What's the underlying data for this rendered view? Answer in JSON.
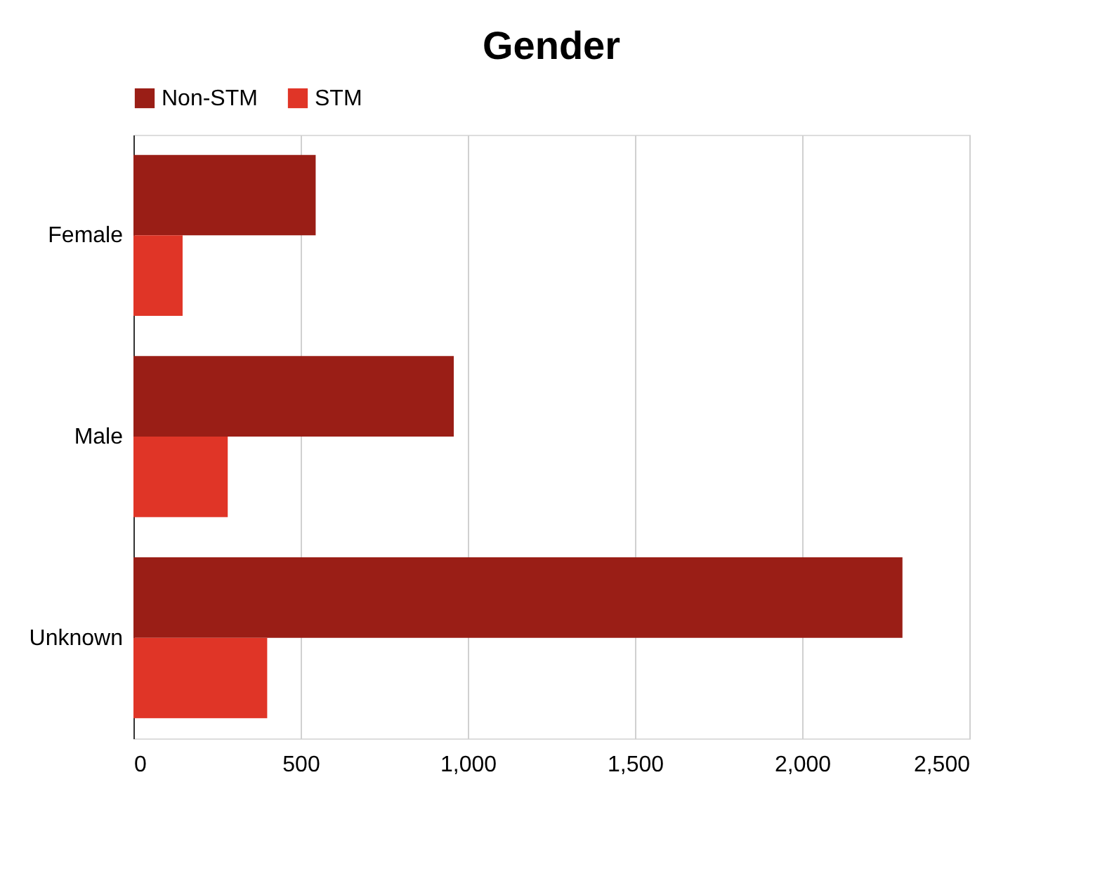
{
  "chart_data": {
    "type": "bar",
    "orientation": "horizontal",
    "title": "Gender",
    "categories": [
      "Female",
      "Male",
      "Unknown"
    ],
    "series": [
      {
        "name": "Non-STM",
        "color": "#9a1e16",
        "values": [
          545,
          958,
          2300
        ]
      },
      {
        "name": "STM",
        "color": "#e03527",
        "values": [
          147,
          282,
          400
        ]
      }
    ],
    "xlim": [
      0,
      2500
    ],
    "xticks": [
      0,
      500,
      {
        "value": 1000,
        "label": "1,000"
      },
      {
        "value": 1500,
        "label": "1,500"
      },
      {
        "value": 2000,
        "label": "2,000"
      },
      {
        "value": 2500,
        "label": "2,500"
      }
    ],
    "grid": "x",
    "legend": "top"
  }
}
